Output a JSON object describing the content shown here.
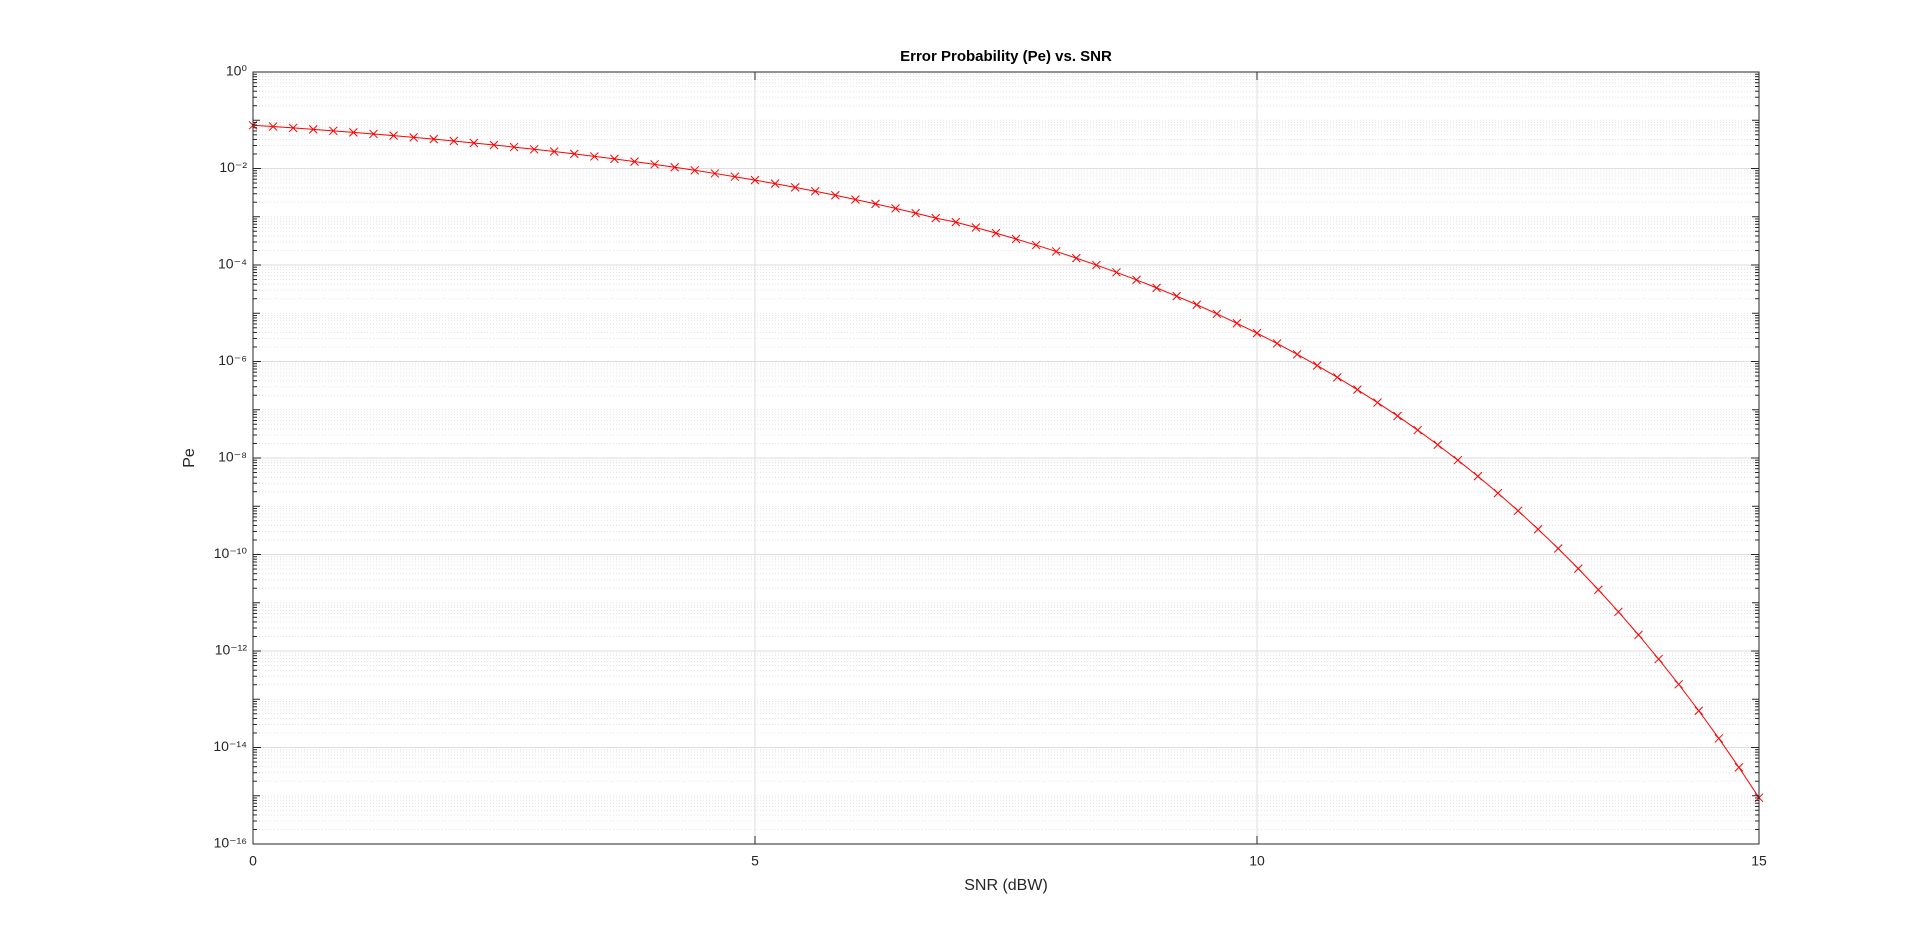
{
  "chart_data": {
    "type": "line",
    "title": "Error Probability (Pe) vs. SNR",
    "x_label": "SNR (dBW)",
    "y_label": "Pe",
    "x": [
      0,
      0.2,
      0.4,
      0.6,
      0.8,
      1,
      1.2,
      1.4,
      1.6,
      1.8,
      2,
      2.2,
      2.4,
      2.6,
      2.8,
      3,
      3.2,
      3.4,
      3.6,
      3.8,
      4,
      4.2,
      4.4,
      4.6,
      4.8,
      5,
      5.2,
      5.4,
      5.6,
      5.8,
      6,
      6.2,
      6.4,
      6.6,
      6.8,
      7,
      7.2,
      7.4,
      7.6,
      7.8,
      8,
      8.2,
      8.4,
      8.6,
      8.8,
      9,
      9.2,
      9.4,
      9.6,
      9.8,
      10,
      10.2,
      10.4,
      10.6,
      10.8,
      11,
      11.2,
      11.4,
      11.6,
      11.8,
      12,
      12.2,
      12.4,
      12.6,
      12.8,
      13,
      13.2,
      13.4,
      13.6,
      13.8,
      14,
      14.2,
      14.4,
      14.6,
      14.8,
      15
    ],
    "series": [
      {
        "color": "#ff0000",
        "marker": "x",
        "values": [
          0.0786,
          0.074,
          0.0693,
          0.0648,
          0.0604,
          0.0561,
          0.052,
          0.048,
          0.0442,
          0.0406,
          0.0371,
          0.0338,
          0.0307,
          0.0278,
          0.025,
          0.0225,
          0.0201,
          0.0178,
          0.0158,
          0.0139,
          0.0122,
          0.0106,
          0.00918,
          0.0079,
          0.00676,
          0.00574,
          0.00485,
          0.00406,
          0.00338,
          0.00279,
          0.00228,
          0.00185,
          0.00149,
          0.00119,
          0.000935,
          0.000773,
          0.000598,
          0.000458,
          0.000346,
          0.000259,
          0.000191,
          0.000139,
          9.97e-05,
          7.05e-05,
          4.91e-05,
          3.36e-05,
          2.26e-05,
          1.5e-05,
          9.73e-06,
          6.2e-06,
          3.87e-06,
          2.37e-06,
          1.41e-06,
          8.25e-07,
          4.7e-07,
          2.61e-07,
          1.41e-07,
          7.43e-08,
          3.79e-08,
          1.88e-08,
          9.01e-09,
          4.18e-09,
          1.87e-09,
          8.06e-10,
          3.34e-10,
          1.33e-10,
          5.09e-11,
          1.86e-11,
          6.49e-12,
          2.16e-12,
          6.81e-13,
          2.04e-13,
          5.78e-14,
          1.54e-14,
          3.87e-15,
          9.12e-16
        ]
      }
    ],
    "xlim": [
      0,
      15
    ],
    "xticks": [
      0,
      5,
      10,
      15
    ],
    "ylim": [
      1e-16,
      1
    ],
    "y_scale": "log",
    "yticks": [
      {
        "value": 1e-16,
        "label": "10⁻¹⁶"
      },
      {
        "value": 1e-14,
        "label": "10⁻¹⁴"
      },
      {
        "value": 1e-12,
        "label": "10⁻¹²"
      },
      {
        "value": 1e-10,
        "label": "10⁻¹⁰"
      },
      {
        "value": 1e-08,
        "label": "10⁻⁸"
      },
      {
        "value": 1e-06,
        "label": "10⁻⁶"
      },
      {
        "value": 0.0001,
        "label": "10⁻⁴"
      },
      {
        "value": 0.01,
        "label": "10⁻²"
      },
      {
        "value": 1,
        "label": "10⁰"
      }
    ],
    "grid": true,
    "minor_grid": true
  }
}
